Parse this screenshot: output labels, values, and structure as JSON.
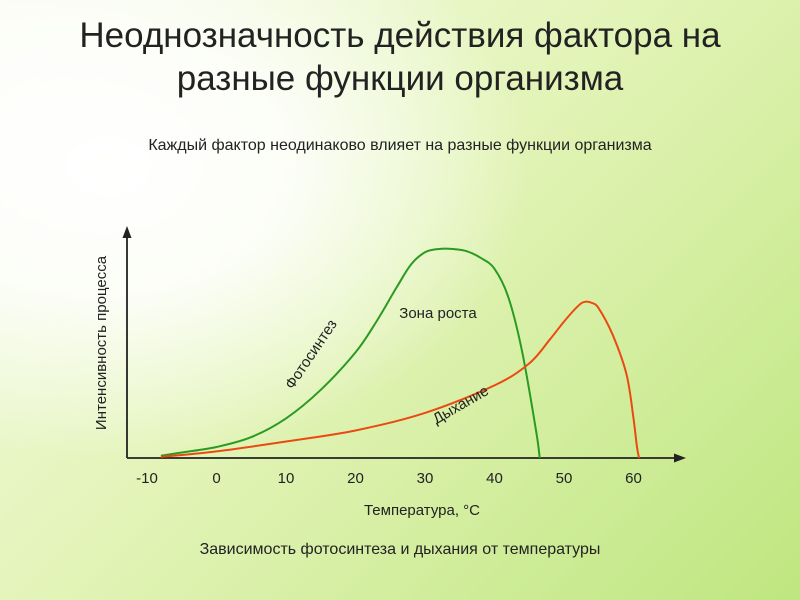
{
  "slide": {
    "title_line1": "Неоднозначность действия фактора на",
    "title_line2": "разные функции организма",
    "subtitle": "Каждый фактор неодинаково влияет на разные функции организма",
    "caption": "Зависимость фотосинтеза и дыхания от температуры"
  },
  "chart_data": {
    "type": "line",
    "xlabel": "Температура, °С",
    "ylabel": "Интенсивность процесса",
    "x_ticks": [
      -10,
      0,
      10,
      20,
      30,
      40,
      50,
      60
    ],
    "x_tick_labels": [
      "-10",
      "0",
      "10",
      "20",
      "30",
      "40",
      "50",
      "60"
    ],
    "xlim": [
      -10,
      65
    ],
    "ylim": [
      0,
      100
    ],
    "y_ticks": [],
    "grid": false,
    "legend": "none",
    "series": [
      {
        "name": "Фотосинтез",
        "color": "#2b9a22",
        "points": [
          [
            -8,
            1
          ],
          [
            -5,
            2.5
          ],
          [
            0,
            5
          ],
          [
            5,
            9.5
          ],
          [
            10,
            18
          ],
          [
            15,
            31
          ],
          [
            20,
            48
          ],
          [
            23,
            62
          ],
          [
            26,
            78
          ],
          [
            28,
            88
          ],
          [
            30,
            93.5
          ],
          [
            32,
            95
          ],
          [
            34,
            95
          ],
          [
            36,
            94
          ],
          [
            38,
            91
          ],
          [
            40,
            86
          ],
          [
            42,
            73
          ],
          [
            44,
            48
          ],
          [
            46,
            12
          ],
          [
            46.5,
            0
          ]
        ]
      },
      {
        "name": "Дыхание",
        "color": "#ea4a12",
        "points": [
          [
            -8,
            0.5
          ],
          [
            0,
            3
          ],
          [
            10,
            7.5
          ],
          [
            20,
            12.5
          ],
          [
            30,
            20.5
          ],
          [
            40,
            33
          ],
          [
            45,
            43
          ],
          [
            48,
            54
          ],
          [
            50,
            62
          ],
          [
            52,
            69
          ],
          [
            53,
            71
          ],
          [
            54,
            70.5
          ],
          [
            55,
            68
          ],
          [
            57,
            56
          ],
          [
            59,
            38
          ],
          [
            60,
            18
          ],
          [
            60.5,
            5
          ],
          [
            60.8,
            0
          ]
        ]
      }
    ],
    "annotations": [
      {
        "text": "Фотосинтез",
        "series": "Фотосинтез"
      },
      {
        "text": "Дыхание",
        "series": "Дыхание"
      },
      {
        "text": "Зона роста"
      }
    ]
  }
}
